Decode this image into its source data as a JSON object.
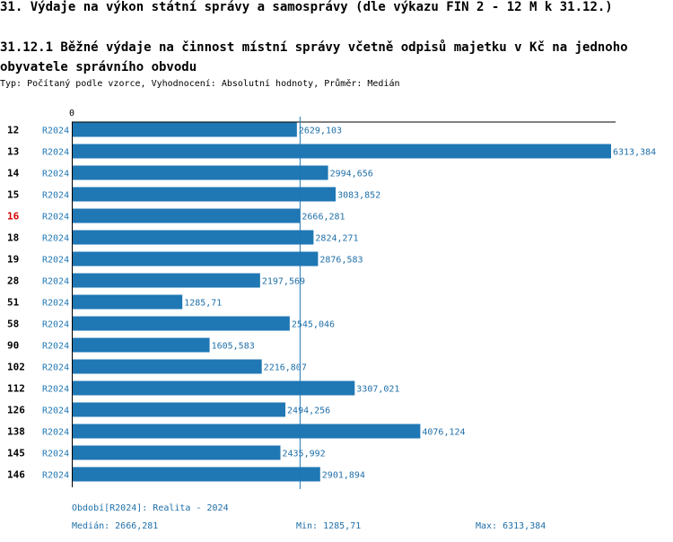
{
  "title": "31. Výdaje na výkon státní správy a samosprávy (dle výkazu FIN 2 - 12 M k 31.12.)",
  "subtitle": "31.12.1 Běžné výdaje na činnost místní správy včetně odpisů majetku v Kč na jednoho obyvatele správního obvodu",
  "type_line": "Typ: Počítaný podle vzorce, Vyhodnocení: Absolutní hodnoty, Průměr: Medián",
  "colors": {
    "bar": "#1f77b4",
    "highlight_label": "#d40000",
    "text_blue": "#1f6fa8"
  },
  "chart_data": {
    "type": "bar",
    "orientation": "horizontal",
    "title": "31.12.1 Běžné výdaje na činnost místní správy včetně odpisů majetku v Kč na jednoho obyvatele správního obvodu",
    "axis_zero_label": "0",
    "xlim": [
      0,
      6313.384
    ],
    "median": 2666.281,
    "highlight_category": "16",
    "series_name": "R2024",
    "categories": [
      "12",
      "13",
      "14",
      "15",
      "16",
      "18",
      "19",
      "28",
      "51",
      "58",
      "90",
      "102",
      "112",
      "126",
      "138",
      "145",
      "146"
    ],
    "values": [
      2629.103,
      6313.384,
      2994.656,
      3083.852,
      2666.281,
      2824.271,
      2876.583,
      2197.569,
      1285.71,
      2545.046,
      1605.583,
      2216.807,
      3307.021,
      2494.256,
      4076.124,
      2435.992,
      2901.894
    ],
    "value_labels": [
      "2629,103",
      "6313,384",
      "2994,656",
      "3083,852",
      "2666,281",
      "2824,271",
      "2876,583",
      "2197,569",
      "1285,71",
      "2545,046",
      "1605,583",
      "2216,807",
      "3307,021",
      "2494,256",
      "4076,124",
      "2435,992",
      "2901,894"
    ]
  },
  "footer": {
    "period": "Období[R2024]: Realita - 2024",
    "median": "Medián: 2666,281",
    "min": "Min: 1285,71",
    "max": "Max: 6313,384"
  }
}
